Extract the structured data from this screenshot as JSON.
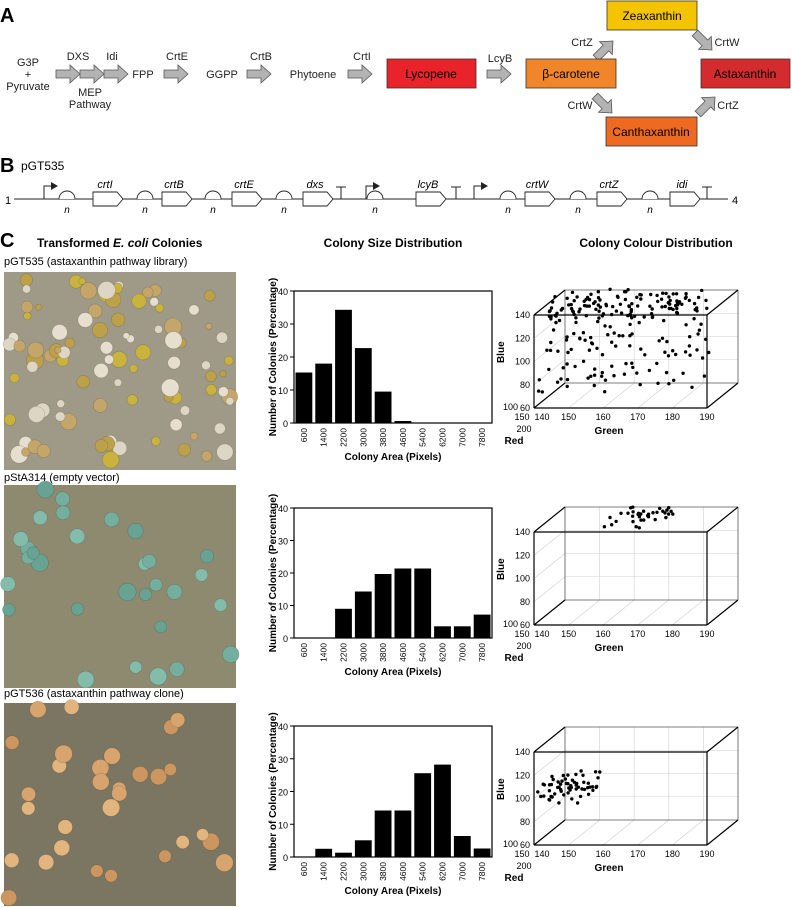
{
  "panel_labels": {
    "a": "A",
    "b": "B",
    "c": "C"
  },
  "pathway": {
    "substrate_line1": "G3P",
    "substrate_plus": "+",
    "substrate_line2": "Pyruvate",
    "enzymes": {
      "dxs": "DXS",
      "idi": "Idi",
      "crtE": "CrtE",
      "crtB": "CrtB",
      "crtI": "CrtI",
      "lcyB": "LcyB",
      "crtZ_top": "CrtZ",
      "crtW_top": "CrtW",
      "crtW_bottom": "CrtW",
      "crtZ_bottom": "CrtZ"
    },
    "mep_line1": "MEP",
    "mep_line2": "Pathway",
    "intermediates": {
      "fpp": "FPP",
      "ggpp": "GGPP",
      "phytoene": "Phytoene"
    },
    "lycopene": {
      "label": "Lycopene",
      "color": "#e8232a"
    },
    "beta_carotene": {
      "label": "β-carotene",
      "color": "#f0852a"
    },
    "zeaxanthin": {
      "label": "Zeaxanthin",
      "color": "#f5c400"
    },
    "canthaxanthin": {
      "label": "Canthaxanthin",
      "color": "#ee6a22"
    },
    "astaxanthin": {
      "label": "Astaxanthin",
      "color": "#d42b2e"
    }
  },
  "construct": {
    "name": "pGT535",
    "start": "1",
    "end": "4",
    "n": "n",
    "genes": [
      "crtI",
      "crtB",
      "crtE",
      "dxs",
      "lcyB",
      "crtW",
      "crtZ",
      "idi"
    ]
  },
  "section_c": {
    "col1_prefix": "Transformed ",
    "col1_italic": "E. coli",
    "col1_suffix": " Colonies",
    "col2": "Colony Size Distribution",
    "col3": "Colony Colour Distribution"
  },
  "rows": [
    {
      "label": "pGT535 (astaxanthin pathway library)",
      "plate": {
        "bg": "#9e9a87",
        "colony_colors": [
          "#ded6c4",
          "#c9b23e",
          "#e6dfcf",
          "#bda04a",
          "#c4a56a"
        ]
      }
    },
    {
      "label": "pStA314 (empty vector)",
      "plate": {
        "bg": "#8d8a70",
        "colony_colors": [
          "#74ae9e",
          "#84bcac",
          "#68a292"
        ]
      }
    },
    {
      "label": "pGT536 (astaxanthin pathway clone)",
      "plate": {
        "bg": "#7a7662",
        "colony_colors": [
          "#d8a46e",
          "#e2b47e",
          "#cc9660"
        ]
      }
    }
  ],
  "chart_data": [
    {
      "type": "bar",
      "categories": [
        "600",
        "1400",
        "2200",
        "3000",
        "3800",
        "4600",
        "5400",
        "6200",
        "7000",
        "7800"
      ],
      "values": [
        15.3,
        18,
        34.3,
        22.7,
        9.5,
        0.6,
        0,
        0,
        0,
        0
      ],
      "xlabel": "Colony Area (Pixels)",
      "ylabel": "Number of Colonies (Percentage)",
      "ylim": [
        0,
        40
      ],
      "yticks": [
        0,
        10,
        20,
        30,
        40
      ]
    },
    {
      "type": "bar",
      "categories": [
        "600",
        "1400",
        "2200",
        "3000",
        "3800",
        "4600",
        "5400",
        "6200",
        "7000",
        "7800"
      ],
      "values": [
        0,
        0,
        9,
        14.3,
        19.7,
        21.4,
        21.4,
        3.6,
        3.6,
        7.2
      ],
      "xlabel": "Colony Area (Pixels)",
      "ylabel": "Number of Colonies (Percentage)",
      "ylim": [
        0,
        40
      ],
      "yticks": [
        0,
        10,
        20,
        30,
        40
      ]
    },
    {
      "type": "bar",
      "categories": [
        "600",
        "1400",
        "2200",
        "3000",
        "3800",
        "4600",
        "5400",
        "6200",
        "7000",
        "7800"
      ],
      "values": [
        0,
        2.5,
        1.3,
        5.1,
        14.2,
        14.2,
        25.6,
        28.2,
        6.4,
        2.6
      ],
      "xlabel": "Colony Area (Pixels)",
      "ylabel": "Number of Colonies (Percentage)",
      "ylim": [
        0,
        40
      ],
      "yticks": [
        0,
        10,
        20,
        30,
        40
      ]
    },
    {
      "type": "scatter",
      "xlabel": "Green",
      "ylabel": "Blue",
      "zlabel": "Red",
      "xlim": [
        140,
        190
      ],
      "xticks": [
        "140",
        "150",
        "160",
        "170",
        "180",
        "190"
      ],
      "ylim": [
        60,
        140
      ],
      "yticks": [
        "60",
        "80",
        "100",
        "120",
        "140"
      ],
      "zticks": [
        "100",
        "150",
        "200"
      ],
      "cluster": {
        "green_range": [
          140,
          185
        ],
        "blue_range": [
          62,
          142
        ],
        "count": 220
      }
    },
    {
      "type": "scatter",
      "xlabel": "Green",
      "ylabel": "Blue",
      "zlabel": "Red",
      "xlim": [
        140,
        190
      ],
      "xticks": [
        "140",
        "150",
        "160",
        "170",
        "180",
        "190"
      ],
      "ylim": [
        60,
        140
      ],
      "yticks": [
        "60",
        "80",
        "100",
        "120",
        "140"
      ],
      "zticks": [
        "100",
        "150",
        "200"
      ],
      "cluster": {
        "green_range": [
          158,
          172
        ],
        "blue_range": [
          134,
          142
        ],
        "count": 35
      }
    },
    {
      "type": "scatter",
      "xlabel": "Green",
      "ylabel": "Blue",
      "zlabel": "Red",
      "xlim": [
        140,
        190
      ],
      "xticks": [
        "140",
        "150",
        "160",
        "170",
        "180",
        "190"
      ],
      "ylim": [
        60,
        140
      ],
      "yticks": [
        "60",
        "80",
        "100",
        "120",
        "140"
      ],
      "zticks": [
        "100",
        "150",
        "200"
      ],
      "cluster": {
        "green_range": [
          140,
          152
        ],
        "blue_range": [
          86,
          104
        ],
        "count": 60
      }
    }
  ]
}
